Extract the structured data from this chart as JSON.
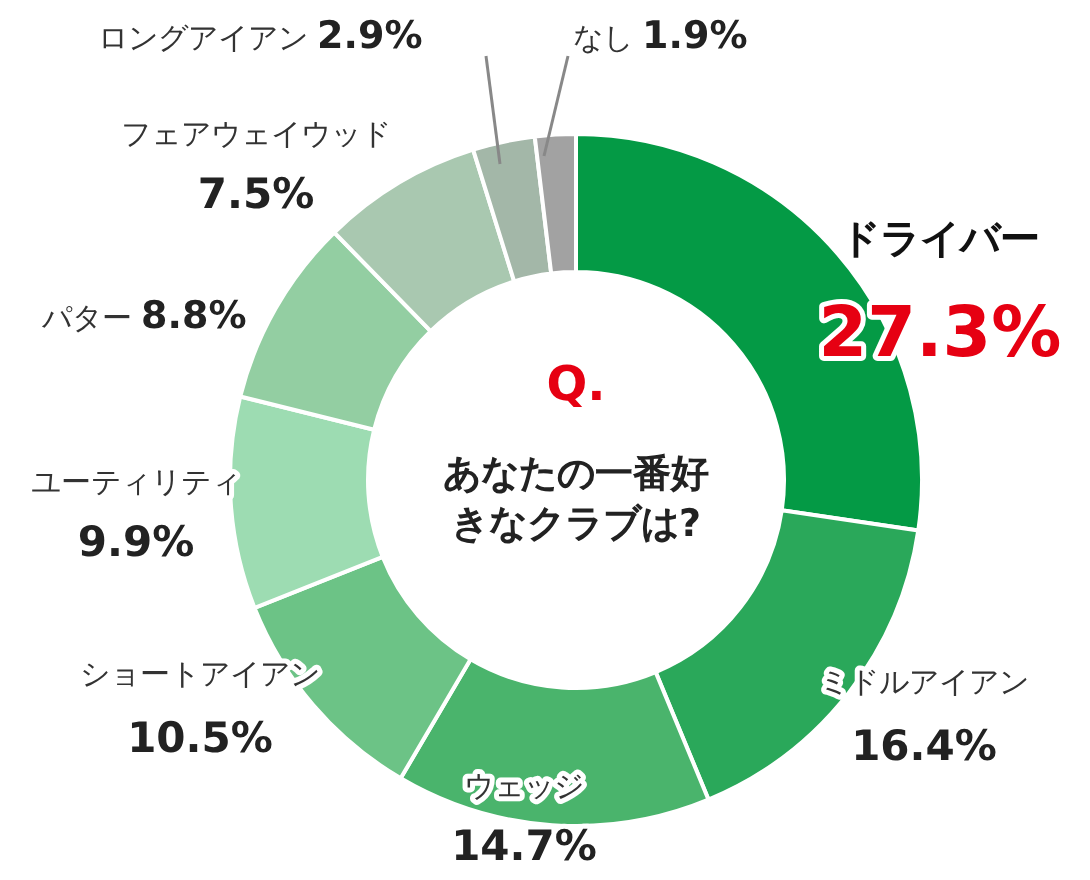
{
  "chart_data": {
    "type": "donut",
    "title": "Q.",
    "subtitle": "あなたの一番好きなクラブは?",
    "categories": [
      "ドライバー",
      "ミドルアイアン",
      "ウェッジ",
      "ショートアイアン",
      "ユーティリティ",
      "パター",
      "フェアウェイウッド",
      "ロングアイアン",
      "なし"
    ],
    "values": [
      27.3,
      16.4,
      14.7,
      10.5,
      9.9,
      8.8,
      7.5,
      2.9,
      1.9
    ],
    "colors": [
      "#049a45",
      "#2aa85a",
      "#4ab46c",
      "#6cc386",
      "#9ddcb2",
      "#93cea2",
      "#a9c8b0",
      "#a3b7a8",
      "#a2a2a2"
    ],
    "value_labels": [
      "27.3%",
      "16.4%",
      "14.7%",
      "10.5%",
      "9.9%",
      "8.8%",
      "7.5%",
      "2.9%",
      "1.9%"
    ]
  }
}
